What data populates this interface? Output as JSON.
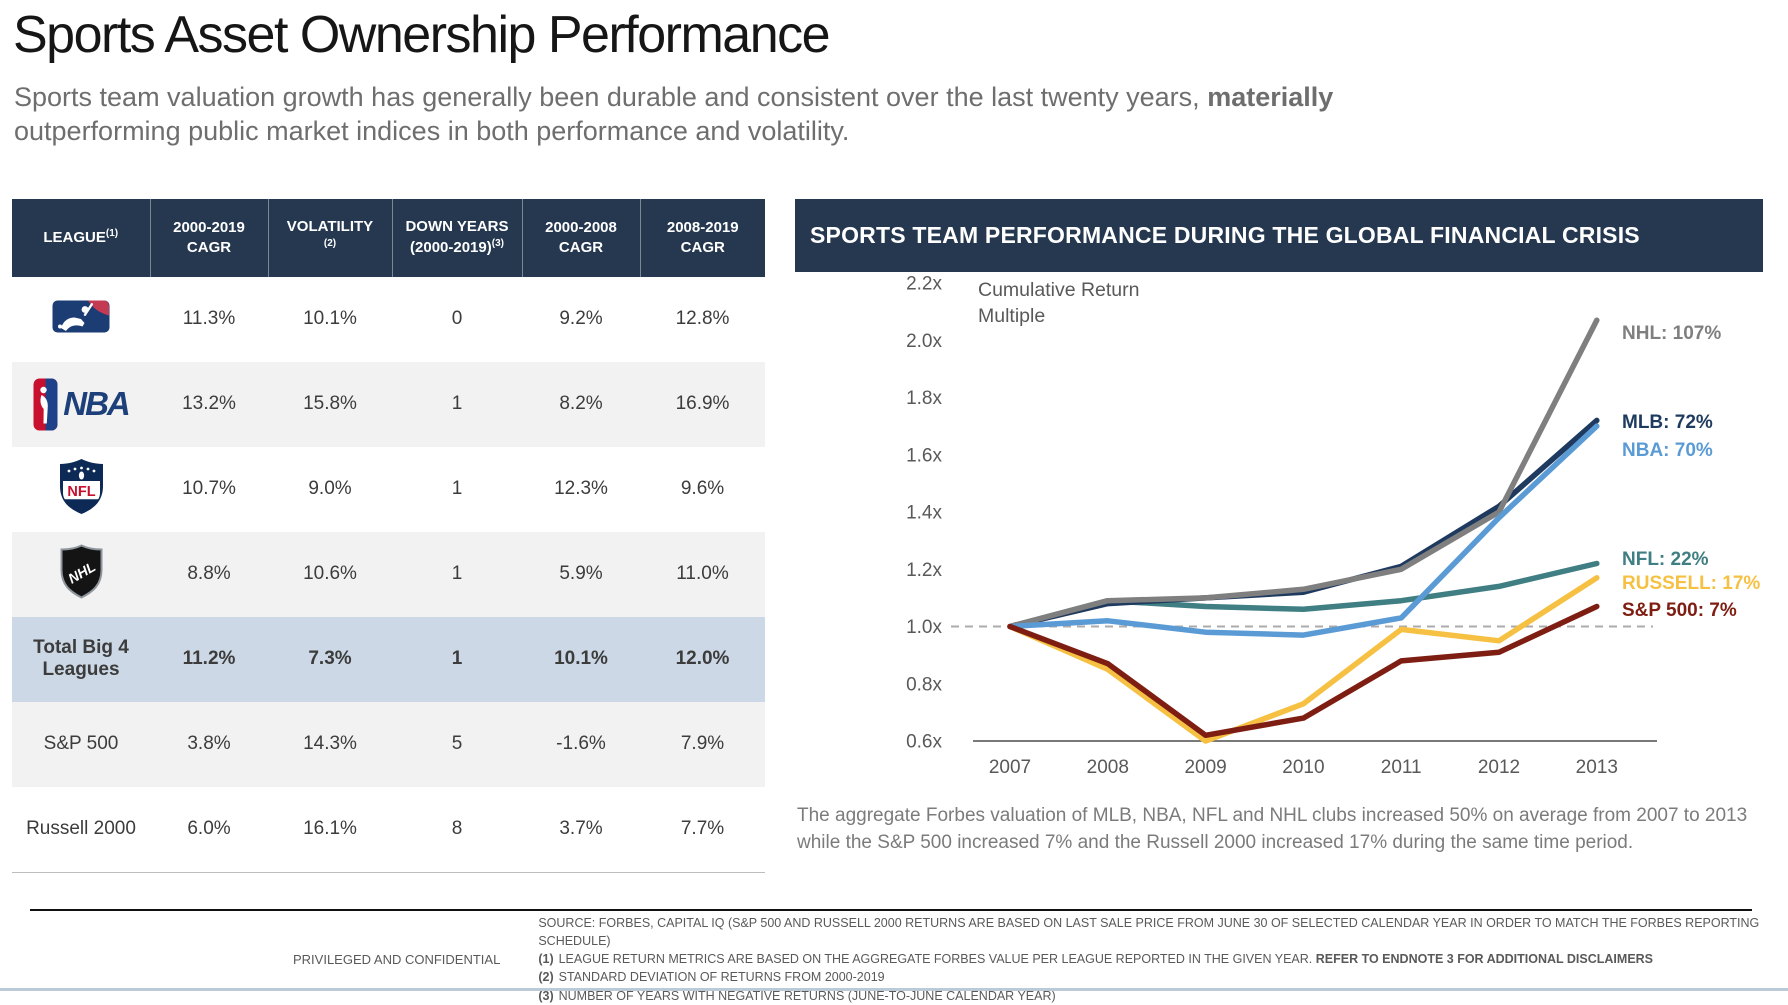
{
  "slide": {
    "title": "Sports Asset Ownership Performance",
    "subtitle": {
      "regular": "Sports team valuation growth has generally been durable and consistent over the last twenty years, ",
      "bold": "materially",
      "rest": " outperforming public market indices in both performance and volatility."
    }
  },
  "table": {
    "columns": [
      {
        "label": "LEAGUE",
        "sup": "(1)",
        "line2": "",
        "sup2": ""
      },
      {
        "label": "2000-2019",
        "sup": "",
        "line2": "CAGR",
        "sup2": ""
      },
      {
        "label": "VOLATILITY",
        "sup": "",
        "line2": "",
        "sup2": "(2)"
      },
      {
        "label": "DOWN YEARS",
        "sup": "",
        "line2": "(2000-2019)",
        "sup2": "(3)"
      },
      {
        "label": "2000-2008",
        "sup": "",
        "line2": "CAGR",
        "sup2": ""
      },
      {
        "label": "2008-2019",
        "sup": "",
        "line2": "CAGR",
        "sup2": ""
      }
    ],
    "rows": [
      {
        "league": "MLB",
        "logo": "mlb",
        "values": [
          "11.3%",
          "10.1%",
          "0",
          "9.2%",
          "12.8%"
        ]
      },
      {
        "league": "NBA",
        "logo": "nba",
        "values": [
          "13.2%",
          "15.8%",
          "1",
          "8.2%",
          "16.9%"
        ]
      },
      {
        "league": "NFL",
        "logo": "nfl",
        "values": [
          "10.7%",
          "9.0%",
          "1",
          "12.3%",
          "9.6%"
        ]
      },
      {
        "league": "NHL",
        "logo": "nhl",
        "values": [
          "8.8%",
          "10.6%",
          "1",
          "5.9%",
          "11.0%"
        ]
      },
      {
        "league": "Total Big 4 Leagues",
        "highlight": true,
        "values": [
          "11.2%",
          "7.3%",
          "1",
          "10.1%",
          "12.0%"
        ]
      },
      {
        "league": "S&P 500",
        "values": [
          "3.8%",
          "14.3%",
          "5",
          "-1.6%",
          "7.9%"
        ]
      },
      {
        "league": "Russell 2000",
        "values": [
          "6.0%",
          "16.1%",
          "8",
          "3.7%",
          "7.7%"
        ]
      }
    ]
  },
  "chart": {
    "panel_title": "SPORTS TEAM PERFORMANCE DURING THE GLOBAL FINANCIAL CRISIS",
    "caption": "The aggregate Forbes valuation of MLB, NBA, NFL and NHL clubs increased 50% on average from 2007 to 2013 while the S&P 500 increased 7% and the Russell 2000 increased 17% during the same time period."
  },
  "chart_data": {
    "type": "line",
    "title": "SPORTS TEAM PERFORMANCE DURING THE GLOBAL FINANCIAL CRISIS",
    "axis_label_lines": [
      "Cumulative Return",
      "Multiple"
    ],
    "x": [
      2007,
      2008,
      2009,
      2010,
      2011,
      2012,
      2013
    ],
    "y_ticks": [
      "2.2x",
      "2.0x",
      "1.8x",
      "1.6x",
      "1.4x",
      "1.2x",
      "1.0x",
      "0.8x",
      "0.6x"
    ],
    "ylim": [
      0.6,
      2.2
    ],
    "baseline": {
      "value": 1.0,
      "style": "dashed"
    },
    "grid": false,
    "legend_position": "right-end-labels",
    "series": [
      {
        "name": "NHL",
        "end_label": "NHL: 107%",
        "color": "#7f7f7f",
        "values": [
          1.0,
          1.09,
          1.1,
          1.13,
          1.2,
          1.4,
          2.07
        ]
      },
      {
        "name": "MLB",
        "end_label": "MLB: 72%",
        "color": "#1f3a5f",
        "values": [
          1.0,
          1.08,
          1.1,
          1.12,
          1.21,
          1.42,
          1.72
        ]
      },
      {
        "name": "NBA",
        "end_label": "NBA: 70%",
        "color": "#5b9bd5",
        "values": [
          1.0,
          1.02,
          0.98,
          0.97,
          1.03,
          1.38,
          1.7
        ]
      },
      {
        "name": "NFL",
        "end_label": "NFL: 22%",
        "color": "#3f7e82",
        "values": [
          1.0,
          1.09,
          1.07,
          1.06,
          1.09,
          1.14,
          1.22
        ]
      },
      {
        "name": "RUSSELL",
        "end_label": "RUSSELL: 17%",
        "color": "#f6c143",
        "values": [
          1.0,
          0.85,
          0.6,
          0.73,
          0.99,
          0.95,
          1.17
        ]
      },
      {
        "name": "S&P 500",
        "end_label": "S&P 500: 7%",
        "color": "#7e1e13",
        "values": [
          1.0,
          0.87,
          0.62,
          0.68,
          0.88,
          0.91,
          1.07
        ]
      }
    ]
  },
  "footer": {
    "privileged": "PRIVILEGED AND CONFIDENTIAL",
    "notes": [
      {
        "prefix": "",
        "text": "SOURCE: FORBES, CAPITAL IQ (S&P 500 AND RUSSELL 2000 RETURNS ARE BASED ON LAST SALE PRICE FROM JUNE 30 OF SELECTED CALENDAR YEAR IN ORDER TO MATCH THE FORBES REPORTING SCHEDULE)",
        "bold": ""
      },
      {
        "prefix": "(1)",
        "text": "LEAGUE RETURN METRICS ARE BASED ON THE AGGREGATE FORBES VALUE PER LEAGUE REPORTED IN THE GIVEN YEAR. ",
        "bold": "REFER TO ENDNOTE 3 FOR ADDITIONAL DISCLAIMERS"
      },
      {
        "prefix": "(2)",
        "text": "STANDARD DEVIATION OF RETURNS FROM 2000-2019",
        "bold": ""
      },
      {
        "prefix": "(3)",
        "text": "NUMBER OF YEARS WITH NEGATIVE RETURNS (JUNE-TO-JUNE CALENDAR YEAR)",
        "bold": ""
      }
    ]
  }
}
